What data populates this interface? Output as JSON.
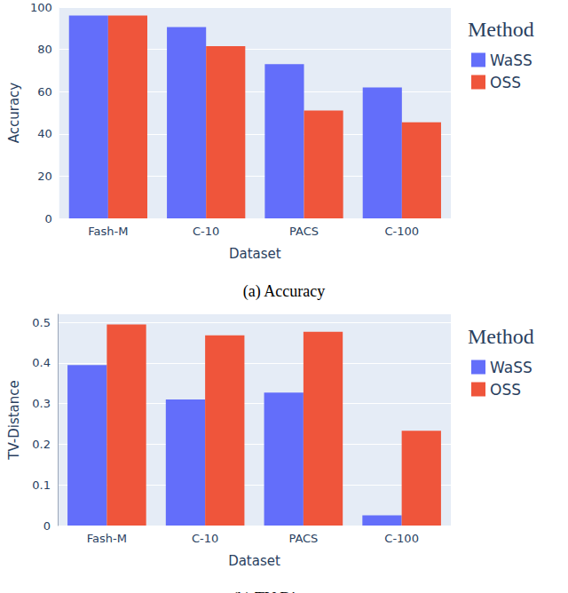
{
  "chart_data": [
    {
      "type": "bar",
      "title": "(a) Accuracy",
      "x_label": "Dataset",
      "y_label": "Accuracy",
      "legend_title": "Method",
      "categories": [
        "Fash-M",
        "C-10",
        "PACS",
        "C-100"
      ],
      "series": [
        {
          "name": "WaSS",
          "color": "#636efa",
          "values": [
            96,
            90.5,
            73,
            62
          ]
        },
        {
          "name": "OSS",
          "color": "#ef553b",
          "values": [
            96,
            81.5,
            51,
            45.5
          ]
        }
      ],
      "ylim": [
        0,
        100
      ],
      "yticks": [
        0,
        20,
        40,
        60,
        80,
        100
      ],
      "grid": true,
      "legend": "top-right"
    },
    {
      "type": "bar",
      "title": "(b) TV-Distance",
      "x_label": "Dataset",
      "y_label": "TV-Distance",
      "legend_title": "Method",
      "categories": [
        "Fash-M",
        "C-10",
        "PACS",
        "C-100"
      ],
      "series": [
        {
          "name": "WaSS",
          "color": "#636efa",
          "values": [
            0.395,
            0.31,
            0.327,
            0.025
          ]
        },
        {
          "name": "OSS",
          "color": "#ef553b",
          "values": [
            0.495,
            0.468,
            0.477,
            0.233
          ]
        }
      ],
      "ylim": [
        0,
        0.52
      ],
      "yticks": [
        0,
        0.1,
        0.2,
        0.3,
        0.4,
        0.5
      ],
      "grid": true,
      "legend": "top-right"
    }
  ]
}
